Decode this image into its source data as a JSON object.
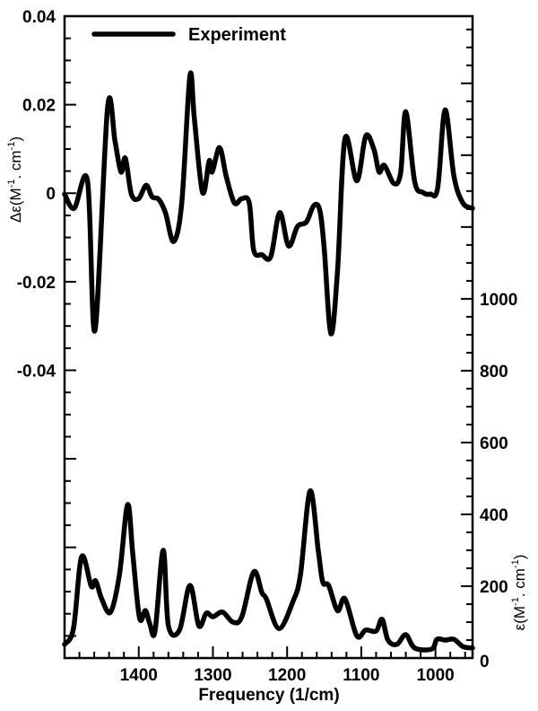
{
  "chart_data": {
    "type": "line",
    "xlabel": "Frequency (1/cm)",
    "xlim": [
      1500,
      950
    ],
    "x_reversed": true,
    "x_ticks": [
      1400,
      1300,
      1200,
      1100,
      1000
    ],
    "x_tick_labels": [
      "1400",
      "1300",
      "1200",
      "1100",
      "1000"
    ],
    "y_left": {
      "label_prefix": "Δε(M",
      "label_sup1": "-1",
      "label_mid": ". cm",
      "label_sup2": "-1",
      "label_suffix": ")",
      "lim": [
        -0.105,
        0.04
      ],
      "ticks": [
        0.04,
        0.02,
        0,
        -0.02,
        -0.04
      ],
      "tick_labels": [
        "0.04",
        "0.02",
        "0",
        "-0.02",
        "-0.04"
      ]
    },
    "y_right": {
      "label_prefix": "ε(M",
      "label_sup1": "-1",
      "label_mid": ". cm",
      "label_sup2": "-1",
      "label_suffix": ")",
      "lim": [
        0,
        1787
      ],
      "ticks": [
        0,
        200,
        400,
        600,
        800,
        1000
      ],
      "tick_labels": [
        "0",
        "200",
        "400",
        "600",
        "800",
        "1000"
      ]
    },
    "grid": false,
    "legend": {
      "placement": "top-left",
      "entries": [
        "Experiment"
      ]
    },
    "color": "#000000",
    "series": [
      {
        "name": "Experiment",
        "axis": "left",
        "x": [
          1502,
          1487,
          1469,
          1459,
          1442,
          1432,
          1424,
          1418,
          1410,
          1400,
          1390,
          1382,
          1373,
          1364,
          1353,
          1342,
          1331,
          1325,
          1314,
          1305,
          1301,
          1291,
          1282,
          1271,
          1261,
          1251,
          1245,
          1234,
          1222,
          1210,
          1198,
          1186,
          1174,
          1164,
          1156,
          1150,
          1141,
          1132,
          1122,
          1106,
          1094,
          1083,
          1076,
          1069,
          1056,
          1047,
          1040,
          1028,
          1017,
          1007,
          997,
          987,
          975,
          963,
          949
        ],
        "y": [
          -0.0002,
          -0.0034,
          0.0028,
          -0.031,
          0.0194,
          0.0117,
          0.0048,
          0.0079,
          -0.0002,
          -0.0012,
          0.0018,
          -0.0008,
          -0.0014,
          -0.0044,
          -0.0109,
          -0.0022,
          0.0265,
          0.0168,
          0.0002,
          0.0073,
          0.0048,
          0.0103,
          0.0038,
          -0.0022,
          -0.0012,
          -0.0022,
          -0.0129,
          -0.0139,
          -0.0143,
          -0.0044,
          -0.0119,
          -0.0075,
          -0.0065,
          -0.0028,
          -0.0038,
          -0.0123,
          -0.0317,
          -0.0176,
          0.0123,
          0.0028,
          0.0129,
          0.0099,
          0.0048,
          0.0063,
          0.0022,
          0.0046,
          0.0184,
          0.0026,
          0.0002,
          -0.0002,
          0.0012,
          0.0188,
          0.0038,
          -0.0022,
          -0.0034
        ]
      },
      {
        "axis": "right",
        "x": [
          1500,
          1488,
          1477,
          1464,
          1458,
          1450,
          1438,
          1426,
          1415,
          1408,
          1399,
          1391,
          1385,
          1378,
          1367,
          1360,
          1345,
          1331,
          1319,
          1309,
          1300,
          1287,
          1273,
          1261,
          1245,
          1234,
          1228,
          1211,
          1192,
          1182,
          1169,
          1158,
          1152,
          1144,
          1132,
          1122,
          1106,
          1094,
          1080,
          1072,
          1064,
          1052,
          1040,
          1028,
          1005,
          998,
          987,
          975,
          963,
          949
        ],
        "y": [
          38,
          82,
          282,
          200,
          215,
          165,
          128,
          232,
          427,
          290,
          112,
          132,
          95,
          75,
          300,
          90,
          78,
          202,
          90,
          125,
          115,
          128,
          100,
          115,
          240,
          182,
          165,
          82,
          158,
          232,
          465,
          300,
          212,
          202,
          132,
          165,
          62,
          78,
          75,
          108,
          50,
          38,
          65,
          28,
          25,
          52,
          50,
          52,
          32,
          28
        ]
      }
    ]
  }
}
